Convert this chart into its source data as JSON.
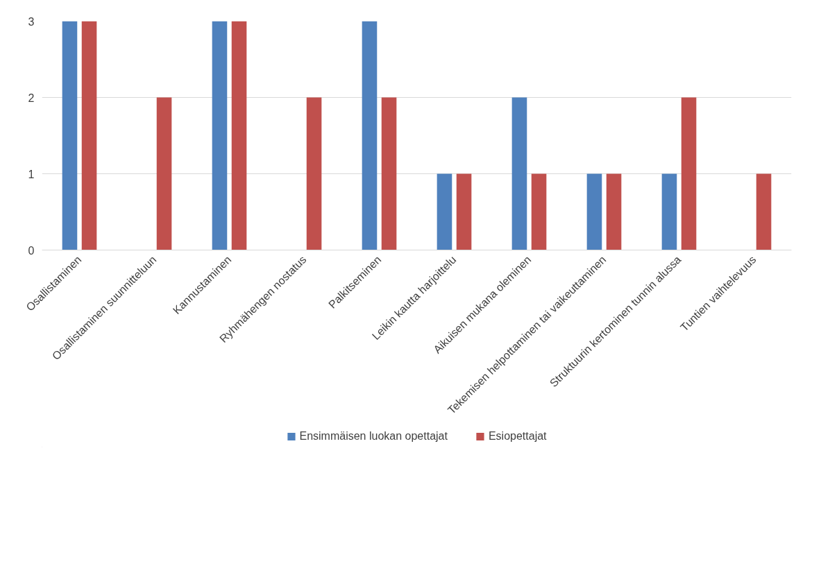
{
  "chart_data": {
    "type": "bar",
    "categories": [
      "Osallistaminen",
      "Osallistaminen suunnitteluun",
      "Kannustaminen",
      "Ryhmähengen nostatus",
      "Palkitseminen",
      "Leikin kautta harjoittelu",
      "Aikuisen mukana oleminen",
      "Tekemisen helpottaminen tai vaikeuttaminen",
      "Struktuurin kertominen tunnin alussa",
      "Tuntien vaihtelevuus"
    ],
    "series": [
      {
        "name": "Ensimmäisen luokan opettajat",
        "color": "#4f81bd",
        "values": [
          3,
          0,
          3,
          0,
          3,
          1,
          2,
          1,
          1,
          0
        ]
      },
      {
        "name": "Esiopettajat",
        "color": "#c0504d",
        "values": [
          3,
          2,
          3,
          2,
          2,
          1,
          1,
          1,
          2,
          1
        ]
      }
    ],
    "ylim": [
      0,
      3
    ],
    "yticks": [
      0,
      1,
      2,
      3
    ],
    "grid": "y",
    "legend": "bottom"
  }
}
